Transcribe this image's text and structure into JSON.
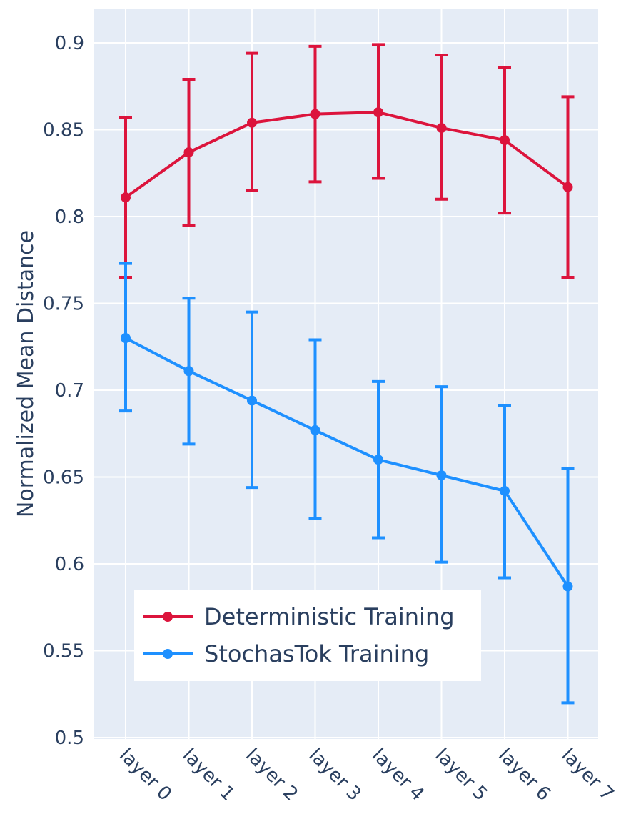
{
  "chart_data": {
    "type": "line",
    "title": "",
    "xlabel": "",
    "ylabel": "Normalized Mean Distance",
    "ylim": [
      0.5,
      0.92
    ],
    "yticks": [
      0.5,
      0.55,
      0.6,
      0.65,
      0.7,
      0.75,
      0.8,
      0.85,
      0.9
    ],
    "ytick_labels": [
      "0.5",
      "0.55",
      "0.6",
      "0.65",
      "0.7",
      "0.75",
      "0.8",
      "0.85",
      "0.9"
    ],
    "categories": [
      "layer 0",
      "layer 1",
      "layer 2",
      "layer 3",
      "layer 4",
      "layer 5",
      "layer 6",
      "layer 7"
    ],
    "grid": true,
    "legend_position": "bottom-left",
    "series": [
      {
        "name": "Deterministic Training",
        "color": "#dc143c",
        "values": [
          0.811,
          0.837,
          0.854,
          0.859,
          0.86,
          0.851,
          0.844,
          0.817
        ],
        "error_upper": [
          0.857,
          0.879,
          0.894,
          0.898,
          0.899,
          0.893,
          0.886,
          0.869
        ],
        "error_lower": [
          0.765,
          0.795,
          0.815,
          0.82,
          0.822,
          0.81,
          0.802,
          0.765
        ]
      },
      {
        "name": "StochasTok Training",
        "color": "#1e90ff",
        "values": [
          0.73,
          0.711,
          0.694,
          0.677,
          0.66,
          0.651,
          0.642,
          0.587
        ],
        "error_upper": [
          0.773,
          0.753,
          0.745,
          0.729,
          0.705,
          0.702,
          0.691,
          0.655
        ],
        "error_lower": [
          0.688,
          0.669,
          0.644,
          0.626,
          0.615,
          0.601,
          0.592,
          0.52
        ]
      }
    ]
  }
}
